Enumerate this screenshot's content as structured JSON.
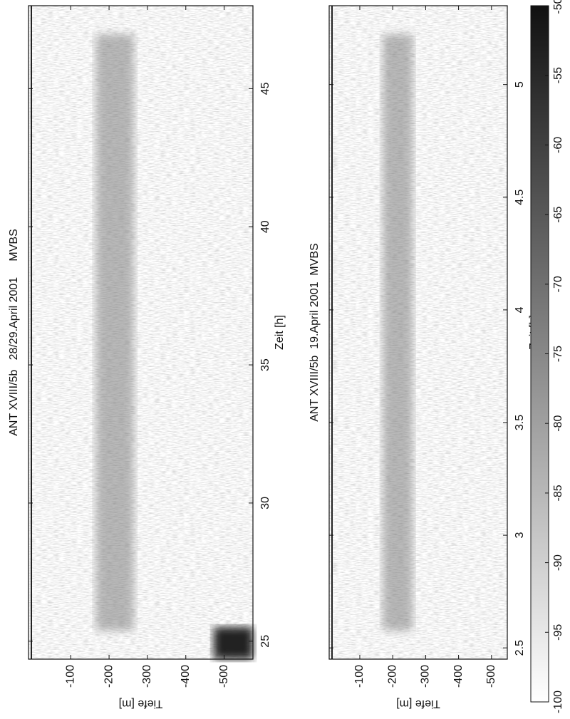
{
  "chart_data": [
    {
      "type": "heatmap",
      "title": "ANT XVIII/5b   28/29.April 2001     MVBS",
      "xlabel": "Zeit [h]",
      "ylabel": "Tiefe [m]",
      "xlim": [
        24.35,
        48.0
      ],
      "ylim": [
        10,
        -575
      ],
      "xticks": [
        25,
        30,
        35,
        40,
        45
      ],
      "yticks": [
        -100,
        -200,
        -300,
        -400,
        -500
      ]
    },
    {
      "type": "heatmap",
      "title": "ANT XVIII/5b  19.April 2001  MVBS",
      "xlabel": "Zeit [h]",
      "ylabel": "Tiefe [m]",
      "xlim": [
        2.45,
        5.35
      ],
      "ylim": [
        -7,
        -548
      ],
      "xticks": [
        2.5,
        3,
        3.5,
        4,
        4.5,
        5
      ],
      "yticks": [
        -100,
        -200,
        -300,
        -400,
        -500
      ],
      "colorbar": {
        "lim": [
          -100,
          -50
        ],
        "ticks": [
          -100,
          -95,
          -90,
          -85,
          -80,
          -75,
          -70,
          -65,
          -60,
          -55,
          -50
        ],
        "colors": [
          "#ffffff",
          "#111111"
        ]
      }
    }
  ]
}
